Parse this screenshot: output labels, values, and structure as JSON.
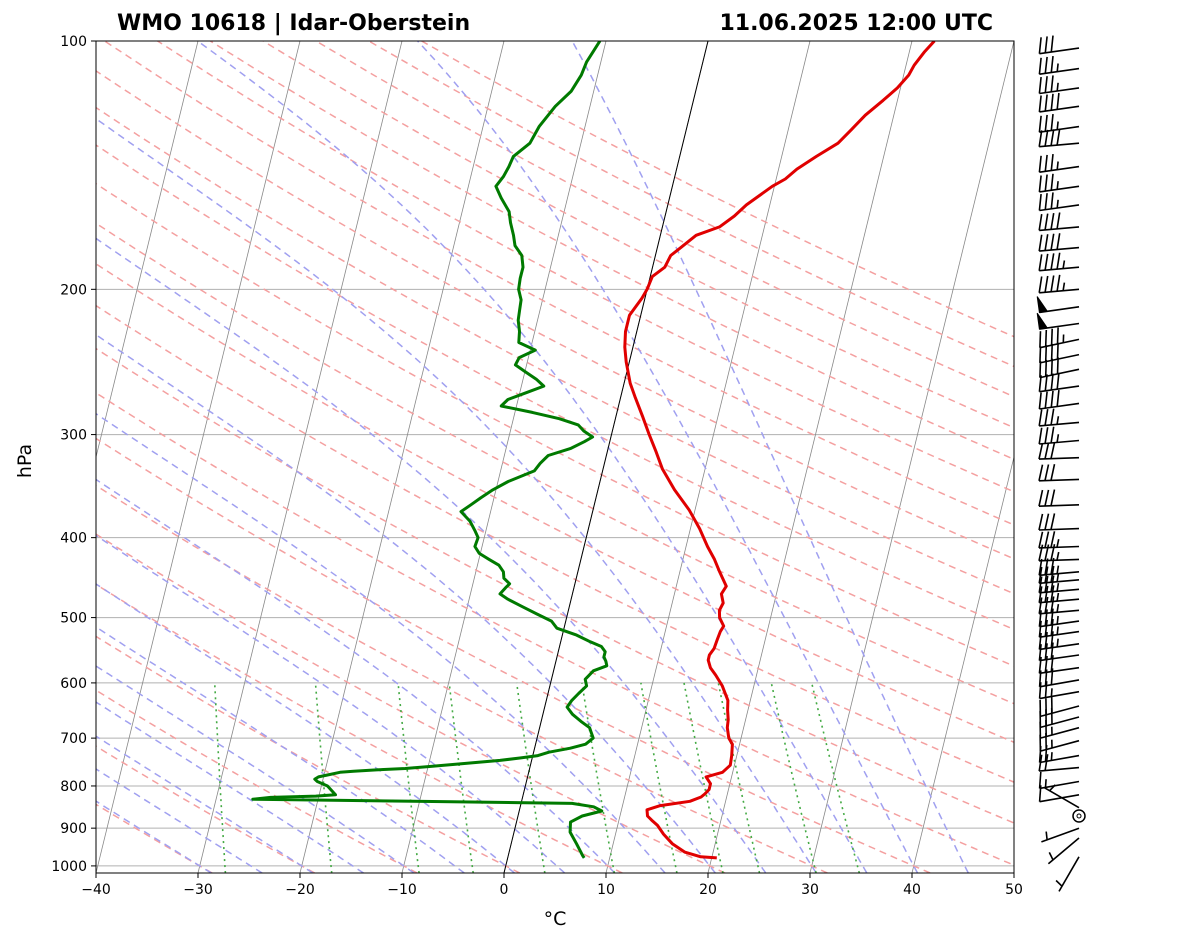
{
  "chart_data": {
    "type": "line",
    "diagram": "skew-t log-p",
    "title_left": "WMO 10618 | Idar-Oberstein",
    "title_right": "11.06.2025 12:00 UTC",
    "xlabel": "°C",
    "ylabel": "hPa",
    "xlim": [
      -40,
      50
    ],
    "ylim": [
      1020,
      100
    ],
    "y_scale": "log",
    "x_ticks": [
      -40,
      -30,
      -20,
      -10,
      0,
      10,
      20,
      30,
      40,
      50
    ],
    "x_tick_labels": [
      "−40",
      "−30",
      "−20",
      "−10",
      "0",
      "10",
      "20",
      "30",
      "40",
      "50"
    ],
    "y_ticks": [
      100,
      200,
      300,
      400,
      500,
      600,
      700,
      800,
      900,
      1000
    ],
    "y_tick_labels": [
      "100",
      "200",
      "300",
      "400",
      "500",
      "600",
      "700",
      "800",
      "900",
      "1000"
    ],
    "grid": true,
    "colors": {
      "temperature": "#e00000",
      "dewpoint": "#007a00",
      "dry_adiabats": "#f4a0a0",
      "moist_adiabats": "#a0a0f0",
      "mixing_ratio": "#44aa44",
      "isotherms": "#888888",
      "isobars": "#b0b0b0",
      "zero_isotherm": "#000000",
      "wind_barbs": "#000000"
    },
    "series": [
      {
        "key": "temperature",
        "pressure": [
          978,
          975,
          962,
          940,
          915,
          893,
          880,
          870,
          855,
          845,
          835,
          825,
          818,
          808,
          795,
          780,
          770,
          755,
          735,
          712,
          700,
          680,
          665,
          647,
          630,
          605,
          587,
          575,
          563,
          555,
          545,
          532,
          520,
          512,
          500,
          490,
          480,
          468,
          458,
          440,
          425,
          410,
          390,
          370,
          350,
          330,
          315,
          300,
          285,
          270,
          260,
          245,
          235,
          225,
          215,
          205,
          200,
          193,
          188,
          182,
          178,
          172,
          168,
          163,
          158,
          150,
          147,
          143,
          138,
          133,
          128,
          123,
          118,
          114,
          110,
          107,
          103,
          100
        ],
        "temp": [
          20.5,
          18.9,
          17.2,
          15.8,
          14.7,
          13.9,
          13.2,
          12.7,
          12.5,
          13.7,
          16.5,
          17.5,
          17.8,
          18.1,
          18.1,
          17.5,
          19.0,
          19.6,
          19.5,
          19.3,
          18.8,
          18.4,
          18.3,
          18.0,
          17.8,
          16.9,
          16.0,
          15.3,
          14.9,
          14.9,
          15.2,
          15.3,
          15.4,
          15.6,
          15.0,
          14.8,
          15.0,
          14.6,
          14.9,
          13.9,
          13.1,
          12.1,
          10.9,
          9.4,
          7.5,
          5.8,
          4.8,
          3.7,
          2.6,
          1.4,
          0.6,
          -0.3,
          -0.8,
          -1.1,
          -1.1,
          -0.3,
          0.0,
          0.2,
          1.2,
          1.5,
          2.3,
          3.5,
          5.6,
          6.8,
          7.7,
          9.8,
          10.9,
          11.8,
          13.4,
          15.2,
          16.2,
          17.2,
          18.6,
          19.7,
          20.5,
          20.8,
          21.5,
          22.2
        ]
      },
      {
        "key": "dewpoint",
        "pressure": [
          978,
          972,
          940,
          910,
          885,
          870,
          858,
          848,
          840,
          838,
          835,
          832,
          830,
          826,
          823,
          820,
          810,
          800,
          790,
          785,
          780,
          775,
          770,
          768,
          765,
          762,
          758,
          752,
          745,
          740,
          735,
          728,
          720,
          712,
          700,
          690,
          680,
          668,
          655,
          642,
          630,
          618,
          605,
          594,
          580,
          572,
          565,
          558,
          550,
          542,
          535,
          525,
          515,
          505,
          495,
          485,
          475,
          468,
          460,
          455,
          448,
          440,
          432,
          425,
          418,
          410,
          400,
          392,
          382,
          372,
          365,
          358,
          350,
          342,
          332,
          325,
          318,
          312,
          306,
          302,
          297,
          292,
          287,
          282,
          277,
          272,
          267,
          262,
          257,
          252,
          247,
          242,
          237,
          232,
          225,
          218,
          212,
          206,
          200,
          194,
          188,
          182,
          177,
          172,
          166,
          161,
          155,
          150,
          146,
          142,
          138,
          133,
          127,
          120,
          115,
          110,
          106,
          103,
          100
        ],
        "dwpt": [
          7.5,
          7.3,
          6.4,
          5.5,
          5.3,
          6.3,
          8.1,
          7.2,
          5.0,
          -0.5,
          -10.6,
          -20.5,
          -26.4,
          -24.7,
          -20.3,
          -18.4,
          -18.9,
          -19.4,
          -20.5,
          -20.8,
          -20.5,
          -19.5,
          -18.5,
          -17.2,
          -15.0,
          -12.2,
          -10.0,
          -6.8,
          -3.1,
          -1.2,
          0.5,
          1.5,
          3.5,
          4.9,
          5.5,
          5.2,
          4.9,
          3.9,
          2.9,
          2.2,
          2.5,
          3.0,
          3.6,
          3.3,
          3.9,
          5.1,
          4.9,
          4.6,
          4.6,
          4.1,
          2.9,
          1.4,
          -0.7,
          -1.4,
          -3.0,
          -4.6,
          -6.2,
          -7.1,
          -6.7,
          -6.4,
          -7.1,
          -7.3,
          -7.9,
          -9.0,
          -10.1,
          -10.7,
          -10.6,
          -11.1,
          -11.8,
          -12.9,
          -12.1,
          -11.3,
          -10.3,
          -9.0,
          -6.7,
          -6.3,
          -5.7,
          -3.7,
          -2.5,
          -1.8,
          -2.8,
          -3.5,
          -5.5,
          -8.3,
          -11.5,
          -11.0,
          -9.4,
          -7.8,
          -8.7,
          -9.9,
          -11.1,
          -10.9,
          -9.5,
          -11.3,
          -11.5,
          -11.9,
          -12.0,
          -12.1,
          -12.6,
          -12.7,
          -12.7,
          -13.1,
          -14.0,
          -14.4,
          -15.0,
          -15.4,
          -16.5,
          -17.3,
          -16.8,
          -16.5,
          -16.3,
          -15.0,
          -14.5,
          -13.4,
          -12.2,
          -11.6,
          -11.4,
          -11.0,
          -10.6
        ]
      }
    ],
    "wind_profile": {
      "units": "kt",
      "pressure": [
        975,
        925,
        900,
        870,
        850,
        820,
        790,
        760,
        735,
        705,
        680,
        660,
        640,
        615,
        595,
        575,
        555,
        538,
        520,
        505,
        490,
        475,
        462,
        450,
        440,
        425,
        410,
        390,
        365,
        340,
        320,
        305,
        290,
        275,
        262,
        250,
        240,
        230,
        220,
        210,
        200,
        188,
        178,
        168,
        158,
        150,
        142,
        133,
        127,
        120,
        114,
        108,
        102
      ],
      "speed_kt": [
        5,
        5,
        5,
        0,
        5,
        10,
        15,
        20,
        25,
        25,
        25,
        30,
        30,
        25,
        30,
        30,
        30,
        35,
        35,
        35,
        35,
        35,
        35,
        35,
        35,
        35,
        35,
        30,
        30,
        30,
        30,
        35,
        35,
        40,
        40,
        40,
        40,
        45,
        50,
        50,
        45,
        45,
        40,
        40,
        35,
        35,
        35,
        40,
        35,
        40,
        35,
        35,
        30
      ],
      "direction_deg": [
        210,
        230,
        250,
        0,
        300,
        260,
        260,
        265,
        260,
        255,
        255,
        255,
        255,
        260,
        260,
        262,
        262,
        262,
        262,
        262,
        265,
        265,
        265,
        265,
        265,
        268,
        268,
        268,
        268,
        268,
        268,
        265,
        265,
        262,
        262,
        258,
        258,
        258,
        262,
        262,
        265,
        265,
        265,
        265,
        262,
        262,
        262,
        265,
        262,
        262,
        262,
        262,
        262
      ]
    }
  }
}
